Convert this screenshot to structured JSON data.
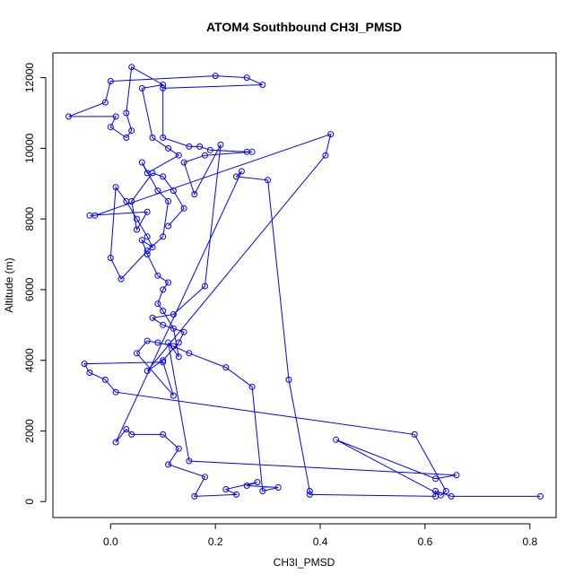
{
  "chart_data": {
    "type": "line",
    "title": "ATOM4 Southbound CH3I_PMSD",
    "xlabel": "CH3I_PMSD",
    "ylabel": "Altitude (m)",
    "xlim": [
      -0.11,
      0.85
    ],
    "ylim": [
      -450,
      12700
    ],
    "x_ticks": [
      0.0,
      0.2,
      0.4,
      0.6,
      0.8
    ],
    "x_tick_labels": [
      "0.0",
      "0.2",
      "0.4",
      "0.6",
      "0.8"
    ],
    "y_ticks": [
      0,
      2000,
      4000,
      6000,
      8000,
      10000,
      12000
    ],
    "y_tick_labels": [
      "0",
      "2000",
      "4000",
      "6000",
      "8000",
      "10000",
      "12000"
    ],
    "grid": false,
    "legend": "none",
    "series": [
      {
        "color": "#0000ff",
        "marker": "open-circle",
        "points": [
          [
            0.82,
            150
          ],
          [
            0.65,
            150
          ],
          [
            0.62,
            300
          ],
          [
            0.62,
            150
          ],
          [
            0.38,
            200
          ],
          [
            0.38,
            300
          ],
          [
            0.34,
            3450
          ],
          [
            0.3,
            9100
          ],
          [
            0.24,
            9200
          ],
          [
            0.25,
            9350
          ],
          [
            0.01,
            1680
          ],
          [
            0.03,
            2050
          ],
          [
            0.04,
            1900
          ],
          [
            0.1,
            1900
          ],
          [
            0.13,
            1500
          ],
          [
            0.11,
            1050
          ],
          [
            0.18,
            700
          ],
          [
            0.16,
            150
          ],
          [
            0.24,
            200
          ],
          [
            0.22,
            350
          ],
          [
            0.28,
            550
          ],
          [
            0.26,
            450
          ],
          [
            0.32,
            400
          ],
          [
            0.29,
            300
          ],
          [
            0.27,
            3250
          ],
          [
            0.22,
            3800
          ],
          [
            0.15,
            4200
          ],
          [
            0.12,
            4400
          ],
          [
            0.09,
            4500
          ],
          [
            0.07,
            4550
          ],
          [
            0.05,
            4200
          ],
          [
            0.12,
            3000
          ],
          [
            0.1,
            3950
          ],
          [
            -0.05,
            3900
          ],
          [
            -0.04,
            3650
          ],
          [
            -0.01,
            3450
          ],
          [
            0.01,
            3100
          ],
          [
            0.58,
            1900
          ],
          [
            0.64,
            300
          ],
          [
            0.63,
            180
          ],
          [
            0.43,
            1750
          ],
          [
            0.62,
            650
          ],
          [
            0.66,
            750
          ],
          [
            0.15,
            1150
          ],
          [
            0.11,
            4500
          ],
          [
            0.13,
            4100
          ],
          [
            0.12,
            4900
          ],
          [
            0.1,
            5400
          ],
          [
            0.09,
            5600
          ],
          [
            0.1,
            6000
          ],
          [
            0.11,
            6200
          ],
          [
            0.09,
            6400
          ],
          [
            0.07,
            7000
          ],
          [
            0.06,
            7400
          ],
          [
            0.08,
            7200
          ],
          [
            0.07,
            7500
          ],
          [
            0.05,
            8000
          ],
          [
            0.03,
            8500
          ],
          [
            0.01,
            8900
          ],
          [
            0.0,
            6900
          ],
          [
            0.02,
            6300
          ],
          [
            0.07,
            7100
          ],
          [
            0.1,
            7500
          ],
          [
            0.11,
            8500
          ],
          [
            0.09,
            8800
          ],
          [
            0.06,
            9600
          ],
          [
            0.07,
            9300
          ],
          [
            0.13,
            9800
          ],
          [
            0.11,
            10000
          ],
          [
            0.08,
            10300
          ],
          [
            0.06,
            11700
          ],
          [
            0.1,
            11800
          ],
          [
            0.04,
            12300
          ],
          [
            0.03,
            11000
          ],
          [
            0.04,
            10500
          ],
          [
            0.03,
            10300
          ],
          [
            0.0,
            10600
          ],
          [
            0.01,
            10900
          ],
          [
            -0.08,
            10900
          ],
          [
            -0.01,
            11300
          ],
          [
            0.0,
            11900
          ],
          [
            0.2,
            12050
          ],
          [
            0.26,
            12000
          ],
          [
            0.29,
            11800
          ],
          [
            0.1,
            11700
          ],
          [
            0.1,
            10300
          ],
          [
            0.15,
            10050
          ],
          [
            0.17,
            10050
          ],
          [
            0.19,
            9950
          ],
          [
            0.26,
            9900
          ],
          [
            0.27,
            9900
          ],
          [
            0.18,
            9800
          ],
          [
            0.14,
            9600
          ],
          [
            0.16,
            8700
          ],
          [
            0.21,
            10100
          ],
          [
            0.18,
            6100
          ],
          [
            0.12,
            5300
          ],
          [
            0.08,
            5200
          ],
          [
            0.1,
            5000
          ],
          [
            0.14,
            4800
          ],
          [
            0.13,
            4500
          ],
          [
            0.1,
            4000
          ],
          [
            0.07,
            3700
          ],
          [
            0.41,
            9800
          ],
          [
            0.42,
            10400
          ],
          [
            -0.03,
            8100
          ],
          [
            -0.04,
            8100
          ],
          [
            0.07,
            8200
          ],
          [
            0.05,
            7700
          ],
          [
            0.04,
            8500
          ],
          [
            0.08,
            9300
          ],
          [
            0.1,
            9200
          ],
          [
            0.12,
            8800
          ],
          [
            0.14,
            8300
          ],
          [
            0.11,
            7800
          ]
        ]
      }
    ]
  }
}
